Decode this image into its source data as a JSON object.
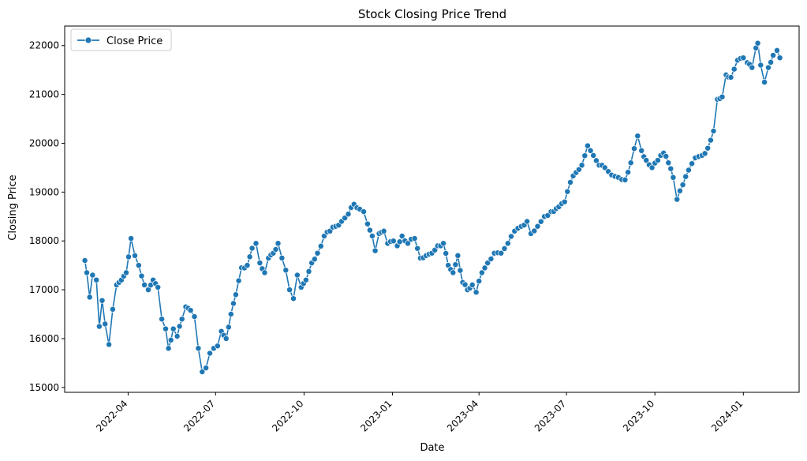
{
  "chart_data": {
    "type": "line",
    "title": "Stock Closing Price Trend",
    "xlabel": "Date",
    "ylabel": "Closing Price",
    "xlim": [
      "2022-01-25",
      "2024-02-28"
    ],
    "ylim": [
      14900,
      22400
    ],
    "x_ticks": [
      "2022-04",
      "2022-07",
      "2022-10",
      "2023-01",
      "2023-04",
      "2023-07",
      "2023-10",
      "2024-01"
    ],
    "y_ticks": [
      15000,
      16000,
      17000,
      18000,
      19000,
      20000,
      21000,
      22000
    ],
    "legend": {
      "position": "top-left",
      "entries": [
        "Close Price"
      ]
    },
    "grid": false,
    "color": "#1f77b4",
    "marker": "circle",
    "anchors": [
      [
        "2022-02-15",
        17600
      ],
      [
        "2022-02-17",
        17350
      ],
      [
        "2022-02-20",
        16850
      ],
      [
        "2022-02-23",
        17300
      ],
      [
        "2022-02-27",
        17200
      ],
      [
        "2022-03-02",
        16250
      ],
      [
        "2022-03-05",
        16780
      ],
      [
        "2022-03-08",
        16300
      ],
      [
        "2022-03-12",
        15880
      ],
      [
        "2022-03-16",
        16600
      ],
      [
        "2022-03-20",
        17100
      ],
      [
        "2022-03-25",
        17200
      ],
      [
        "2022-03-30",
        17350
      ],
      [
        "2022-04-04",
        18050
      ],
      [
        "2022-04-08",
        17700
      ],
      [
        "2022-04-12",
        17500
      ],
      [
        "2022-04-18",
        17100
      ],
      [
        "2022-04-22",
        17000
      ],
      [
        "2022-04-27",
        17200
      ],
      [
        "2022-05-02",
        17050
      ],
      [
        "2022-05-06",
        16400
      ],
      [
        "2022-05-10",
        16200
      ],
      [
        "2022-05-13",
        15800
      ],
      [
        "2022-05-18",
        16200
      ],
      [
        "2022-05-22",
        16050
      ],
      [
        "2022-05-27",
        16400
      ],
      [
        "2022-05-31",
        16650
      ],
      [
        "2022-06-05",
        16580
      ],
      [
        "2022-06-09",
        16450
      ],
      [
        "2022-06-13",
        15800
      ],
      [
        "2022-06-17",
        15320
      ],
      [
        "2022-06-21",
        15400
      ],
      [
        "2022-06-25",
        15700
      ],
      [
        "2022-06-29",
        15800
      ],
      [
        "2022-07-03",
        15850
      ],
      [
        "2022-07-07",
        16150
      ],
      [
        "2022-07-12",
        16000
      ],
      [
        "2022-07-17",
        16500
      ],
      [
        "2022-07-22",
        16900
      ],
      [
        "2022-07-28",
        17450
      ],
      [
        "2022-08-03",
        17500
      ],
      [
        "2022-08-08",
        17850
      ],
      [
        "2022-08-12",
        17950
      ],
      [
        "2022-08-16",
        17550
      ],
      [
        "2022-08-21",
        17350
      ],
      [
        "2022-08-25",
        17650
      ],
      [
        "2022-08-30",
        17750
      ],
      [
        "2022-09-04",
        17950
      ],
      [
        "2022-09-08",
        17650
      ],
      [
        "2022-09-12",
        17400
      ],
      [
        "2022-09-16",
        17000
      ],
      [
        "2022-09-20",
        16820
      ],
      [
        "2022-09-24",
        17300
      ],
      [
        "2022-09-28",
        17050
      ],
      [
        "2022-10-03",
        17200
      ],
      [
        "2022-10-09",
        17550
      ],
      [
        "2022-10-15",
        17750
      ],
      [
        "2022-10-22",
        18100
      ],
      [
        "2022-10-28",
        18200
      ],
      [
        "2022-11-03",
        18300
      ],
      [
        "2022-11-09",
        18400
      ],
      [
        "2022-11-16",
        18550
      ],
      [
        "2022-11-22",
        18750
      ],
      [
        "2022-11-28",
        18650
      ],
      [
        "2022-12-02",
        18600
      ],
      [
        "2022-12-06",
        18350
      ],
      [
        "2022-12-11",
        18100
      ],
      [
        "2022-12-14",
        17800
      ],
      [
        "2022-12-18",
        18150
      ],
      [
        "2022-12-23",
        18200
      ],
      [
        "2022-12-27",
        17950
      ],
      [
        "2023-01-02",
        18000
      ],
      [
        "2023-01-06",
        17900
      ],
      [
        "2023-01-11",
        18100
      ],
      [
        "2023-01-17",
        17950
      ],
      [
        "2023-01-24",
        18050
      ],
      [
        "2023-01-30",
        17650
      ],
      [
        "2023-02-05",
        17700
      ],
      [
        "2023-02-11",
        17750
      ],
      [
        "2023-02-17",
        17900
      ],
      [
        "2023-02-23",
        17950
      ],
      [
        "2023-02-28",
        17500
      ],
      [
        "2023-03-05",
        17350
      ],
      [
        "2023-03-10",
        17700
      ],
      [
        "2023-03-15",
        17150
      ],
      [
        "2023-03-20",
        17000
      ],
      [
        "2023-03-25",
        17100
      ],
      [
        "2023-03-29",
        16950
      ],
      [
        "2023-04-04",
        17350
      ],
      [
        "2023-04-10",
        17550
      ],
      [
        "2023-04-17",
        17750
      ],
      [
        "2023-04-24",
        17750
      ],
      [
        "2023-05-01",
        17950
      ],
      [
        "2023-05-08",
        18200
      ],
      [
        "2023-05-15",
        18300
      ],
      [
        "2023-05-21",
        18400
      ],
      [
        "2023-05-25",
        18150
      ],
      [
        "2023-06-01",
        18300
      ],
      [
        "2023-06-08",
        18500
      ],
      [
        "2023-06-15",
        18600
      ],
      [
        "2023-06-23",
        18700
      ],
      [
        "2023-06-29",
        18800
      ],
      [
        "2023-07-05",
        19200
      ],
      [
        "2023-07-11",
        19400
      ],
      [
        "2023-07-17",
        19550
      ],
      [
        "2023-07-23",
        19950
      ],
      [
        "2023-07-29",
        19750
      ],
      [
        "2023-08-04",
        19550
      ],
      [
        "2023-08-10",
        19500
      ],
      [
        "2023-08-17",
        19350
      ],
      [
        "2023-08-24",
        19300
      ],
      [
        "2023-08-31",
        19250
      ],
      [
        "2023-09-06",
        19600
      ],
      [
        "2023-09-13",
        20150
      ],
      [
        "2023-09-17",
        19850
      ],
      [
        "2023-09-22",
        19650
      ],
      [
        "2023-09-28",
        19500
      ],
      [
        "2023-10-04",
        19650
      ],
      [
        "2023-10-10",
        19800
      ],
      [
        "2023-10-15",
        19600
      ],
      [
        "2023-10-20",
        19300
      ],
      [
        "2023-10-24",
        18850
      ],
      [
        "2023-10-30",
        19150
      ],
      [
        "2023-11-05",
        19450
      ],
      [
        "2023-11-12",
        19700
      ],
      [
        "2023-11-19",
        19750
      ],
      [
        "2023-11-25",
        19900
      ],
      [
        "2023-12-01",
        20250
      ],
      [
        "2023-12-05",
        20900
      ],
      [
        "2023-12-10",
        20950
      ],
      [
        "2023-12-14",
        21400
      ],
      [
        "2023-12-19",
        21350
      ],
      [
        "2023-12-26",
        21700
      ],
      [
        "2024-01-01",
        21750
      ],
      [
        "2024-01-05",
        21650
      ],
      [
        "2024-01-10",
        21550
      ],
      [
        "2024-01-14",
        21950
      ],
      [
        "2024-01-16",
        22050
      ],
      [
        "2024-01-19",
        21600
      ],
      [
        "2024-01-23",
        21250
      ],
      [
        "2024-01-27",
        21550
      ],
      [
        "2024-02-01",
        21800
      ],
      [
        "2024-02-05",
        21900
      ],
      [
        "2024-02-08",
        21750
      ]
    ]
  }
}
